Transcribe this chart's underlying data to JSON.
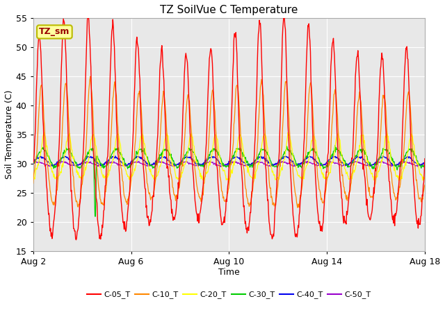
{
  "title": "TZ SoilVue C Temperature",
  "xlabel": "Time",
  "ylabel": "Soil Temperature (C)",
  "ylim": [
    15,
    55
  ],
  "yticks": [
    15,
    20,
    25,
    30,
    35,
    40,
    45,
    50,
    55
  ],
  "xtick_labels": [
    "Aug 2",
    "Aug 6",
    "Aug 10",
    "Aug 14",
    "Aug 18"
  ],
  "series_colors": {
    "C-05_T": "#ff0000",
    "C-10_T": "#ff8800",
    "C-20_T": "#ffff00",
    "C-30_T": "#00cc00",
    "C-40_T": "#0000ee",
    "C-50_T": "#9900cc"
  },
  "annotation_label": "TZ_sm",
  "fig_bg_color": "#ffffff",
  "plot_bg_color": "#e8e8e8",
  "grid_color": "#ffffff",
  "title_fontsize": 11,
  "axis_label_fontsize": 9,
  "tick_fontsize": 9,
  "legend_fontsize": 8
}
